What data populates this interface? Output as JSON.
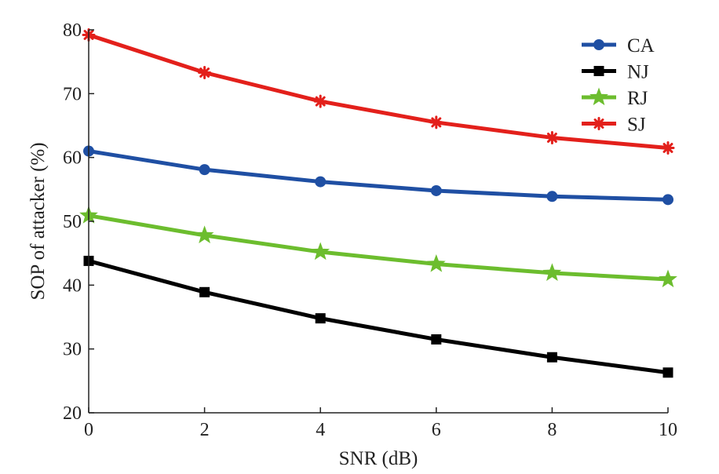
{
  "chart_data": {
    "type": "line",
    "xlabel": "SNR (dB)",
    "ylabel": "SOP of attacker (%)",
    "xlim": [
      0,
      10
    ],
    "ylim": [
      20,
      80
    ],
    "x_ticks": [
      0,
      2,
      4,
      6,
      8,
      10
    ],
    "y_ticks": [
      20,
      30,
      40,
      50,
      60,
      70,
      80
    ],
    "grid": false,
    "legend_position": "top-right",
    "x": [
      0,
      2,
      4,
      6,
      8,
      10
    ],
    "series": [
      {
        "name": "CA",
        "color": "#1f4fa3",
        "marker": "circle",
        "values": [
          61.0,
          58.1,
          56.2,
          54.8,
          53.9,
          53.4
        ]
      },
      {
        "name": "NJ",
        "color": "#000000",
        "marker": "square",
        "values": [
          43.8,
          38.9,
          34.8,
          31.5,
          28.7,
          26.3
        ]
      },
      {
        "name": "RJ",
        "color": "#6cbd2e",
        "marker": "star",
        "values": [
          50.9,
          47.8,
          45.2,
          43.3,
          41.9,
          40.9
        ]
      },
      {
        "name": "SJ",
        "color": "#e3201b",
        "marker": "asterisk",
        "values": [
          79.2,
          73.3,
          68.8,
          65.5,
          63.1,
          61.5
        ]
      }
    ]
  }
}
